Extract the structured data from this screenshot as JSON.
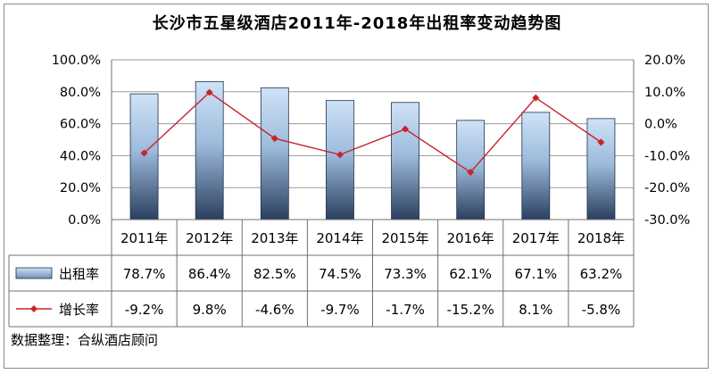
{
  "chart_data": {
    "type": "bar",
    "title": "长沙市五星级酒店2011年-2018年出租率变动趋势图",
    "categories": [
      "2011年",
      "2012年",
      "2013年",
      "2014年",
      "2015年",
      "2016年",
      "2017年",
      "2018年"
    ],
    "series": [
      {
        "name": "出租率",
        "type": "bar",
        "axis": "left",
        "values": [
          78.7,
          86.4,
          82.5,
          74.5,
          73.3,
          62.1,
          67.1,
          63.2
        ],
        "labels": [
          "78.7%",
          "86.4%",
          "82.5%",
          "74.5%",
          "73.3%",
          "62.1%",
          "67.1%",
          "63.2%"
        ]
      },
      {
        "name": "增长率",
        "type": "line",
        "axis": "right",
        "values": [
          -9.2,
          9.8,
          -4.6,
          -9.7,
          -1.7,
          -15.2,
          8.1,
          -5.8
        ],
        "labels": [
          "-9.2%",
          "9.8%",
          "-4.6%",
          "-9.7%",
          "-1.7%",
          "-15.2%",
          "8.1%",
          "-5.8%"
        ]
      }
    ],
    "left_axis": {
      "ylim": [
        0,
        100
      ],
      "ticks": [
        "100.0%",
        "80.0%",
        "60.0%",
        "40.0%",
        "20.0%",
        "0.0%"
      ]
    },
    "right_axis": {
      "ylim": [
        -30,
        20
      ],
      "ticks": [
        "20.0%",
        "10.0%",
        "0.0%",
        "-10.0%",
        "-20.0%",
        "-30.0%"
      ]
    },
    "grid": true,
    "legend": "data-table",
    "colors": {
      "bar_light": "#c9def5",
      "bar_dark": "#2b3f5f",
      "line": "#c8232c",
      "grid": "#9a9a9a"
    }
  },
  "source": "数据整理：合纵酒店顾问"
}
